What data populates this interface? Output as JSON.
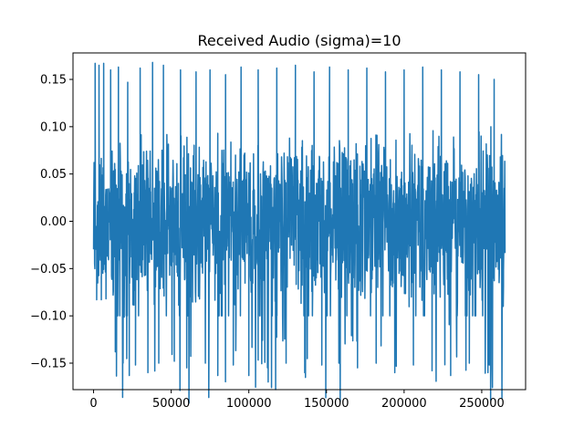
{
  "chart_data": {
    "type": "line",
    "title": "Received Audio (sigma)=10",
    "xlabel": "",
    "ylabel": "",
    "xlim": [
      -13250,
      278250
    ],
    "ylim": [
      -0.178,
      0.178
    ],
    "grid": false,
    "legend": "none",
    "x_ticks": [
      0,
      50000,
      100000,
      150000,
      200000,
      250000
    ],
    "x_tick_labels": [
      "0",
      "50000",
      "100000",
      "150000",
      "200000",
      "250000"
    ],
    "y_ticks": [
      0.15,
      0.1,
      0.05,
      0.0,
      -0.05,
      -0.1,
      -0.15
    ],
    "y_tick_labels": [
      "0.15",
      "0.10",
      "0.05",
      "0.00",
      "−0.05",
      "−0.10",
      "−0.15"
    ],
    "series": [
      {
        "color": "#1f77b4",
        "x_range": [
          0,
          265000
        ],
        "value_range": [
          -0.163,
          0.167
        ],
        "dense_band": [
          -0.1,
          0.1
        ],
        "peaks": [
          {
            "x": 1000,
            "y": 0.167
          },
          {
            "x": 2000,
            "y": -0.083
          },
          {
            "x": 3500,
            "y": 0.165
          },
          {
            "x": 5000,
            "y": -0.083
          },
          {
            "x": 6500,
            "y": 0.167
          },
          {
            "x": 8000,
            "y": -0.082
          },
          {
            "x": 11000,
            "y": 0.16
          },
          {
            "x": 14000,
            "y": -0.138
          },
          {
            "x": 16000,
            "y": 0.163
          },
          {
            "x": 19000,
            "y": -0.15
          },
          {
            "x": 22000,
            "y": 0.147
          },
          {
            "x": 23000,
            "y": -0.163
          },
          {
            "x": 27000,
            "y": -0.152
          },
          {
            "x": 30000,
            "y": 0.162
          },
          {
            "x": 35000,
            "y": -0.16
          },
          {
            "x": 38000,
            "y": 0.168
          },
          {
            "x": 42000,
            "y": -0.15
          },
          {
            "x": 45000,
            "y": 0.165
          },
          {
            "x": 52000,
            "y": -0.148
          },
          {
            "x": 56000,
            "y": 0.16
          },
          {
            "x": 60000,
            "y": -0.155
          },
          {
            "x": 66000,
            "y": 0.158
          },
          {
            "x": 72000,
            "y": -0.15
          },
          {
            "x": 75000,
            "y": 0.16
          },
          {
            "x": 80000,
            "y": -0.163
          },
          {
            "x": 85000,
            "y": 0.155
          },
          {
            "x": 90000,
            "y": -0.152
          },
          {
            "x": 95000,
            "y": 0.163
          },
          {
            "x": 100000,
            "y": -0.163
          },
          {
            "x": 106000,
            "y": 0.16
          },
          {
            "x": 112000,
            "y": -0.155
          },
          {
            "x": 118000,
            "y": 0.162
          },
          {
            "x": 124000,
            "y": -0.15
          },
          {
            "x": 130000,
            "y": 0.165
          },
          {
            "x": 136000,
            "y": -0.16
          },
          {
            "x": 142000,
            "y": 0.158
          },
          {
            "x": 147000,
            "y": -0.152
          },
          {
            "x": 152000,
            "y": 0.163
          },
          {
            "x": 158000,
            "y": -0.15
          },
          {
            "x": 164000,
            "y": 0.16
          },
          {
            "x": 170000,
            "y": -0.155
          },
          {
            "x": 176000,
            "y": 0.162
          },
          {
            "x": 182000,
            "y": -0.15
          },
          {
            "x": 188000,
            "y": 0.158
          },
          {
            "x": 194000,
            "y": -0.16
          },
          {
            "x": 200000,
            "y": 0.16
          },
          {
            "x": 206000,
            "y": -0.152
          },
          {
            "x": 212000,
            "y": 0.163
          },
          {
            "x": 218000,
            "y": -0.158
          },
          {
            "x": 224000,
            "y": 0.16
          },
          {
            "x": 230000,
            "y": -0.163
          },
          {
            "x": 236000,
            "y": 0.158
          },
          {
            "x": 242000,
            "y": -0.15
          },
          {
            "x": 248000,
            "y": 0.155
          },
          {
            "x": 254000,
            "y": -0.16
          },
          {
            "x": 258000,
            "y": 0.15
          },
          {
            "x": 262000,
            "y": 0.068
          },
          {
            "x": 264000,
            "y": -0.068
          }
        ]
      }
    ]
  }
}
